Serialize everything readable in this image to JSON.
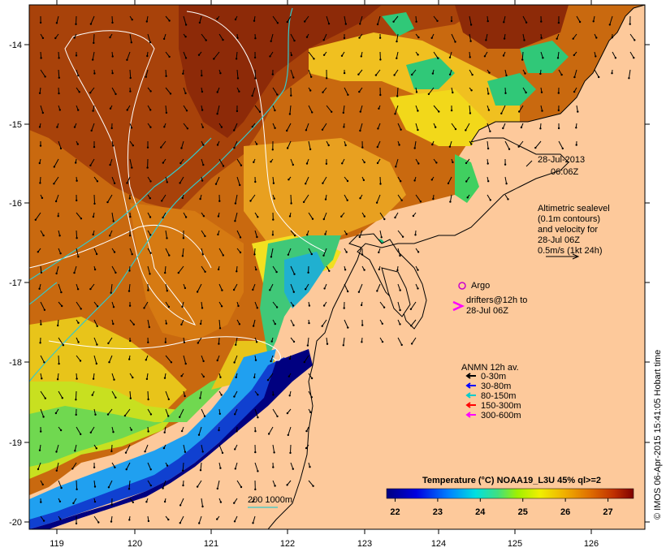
{
  "map": {
    "lon_ticks": [
      "119",
      "120",
      "121",
      "122",
      "123",
      "124",
      "125",
      "126"
    ],
    "lat_ticks": [
      "-14",
      "-15",
      "-16",
      "-17",
      "-18",
      "-19",
      "-20"
    ],
    "date": "28-Jul-2013",
    "time": "06:06Z",
    "altimetry_lines": [
      "Altimetric sealevel",
      "(0.1m contours)",
      "and velocity for",
      "28-Jul 06Z",
      "0.5m/s (1kt 24h)"
    ],
    "argo_label": "Argo",
    "drifter_lines": [
      "drifters@12h to",
      "28-Jul 06Z"
    ],
    "anmn_title": "ANMN 12h av.",
    "anmn_legend": [
      {
        "label": "0-30m",
        "color": "#000000"
      },
      {
        "label": "30-80m",
        "color": "#0000ff"
      },
      {
        "label": "80-150m",
        "color": "#00cccc"
      },
      {
        "label": "150-300m",
        "color": "#ff0000"
      },
      {
        "label": "300-600m",
        "color": "#ff00ff"
      }
    ],
    "colorbar_title": "Temperature (°C) NOAA19_L3U 45% ql>=2",
    "colorbar_ticks": [
      "22",
      "23",
      "24",
      "25",
      "26",
      "27"
    ],
    "colorbar_range": [
      21.8,
      27.6
    ],
    "isobath_label": "200  1000m",
    "credit": "© IMOS 06-Apr-2015 15:41:05 Hobart time",
    "colors": {
      "land": "#fdc99b",
      "argo": "#cc00cc",
      "drifter": "#ff00ff",
      "isobath": "#35c9c9"
    }
  }
}
